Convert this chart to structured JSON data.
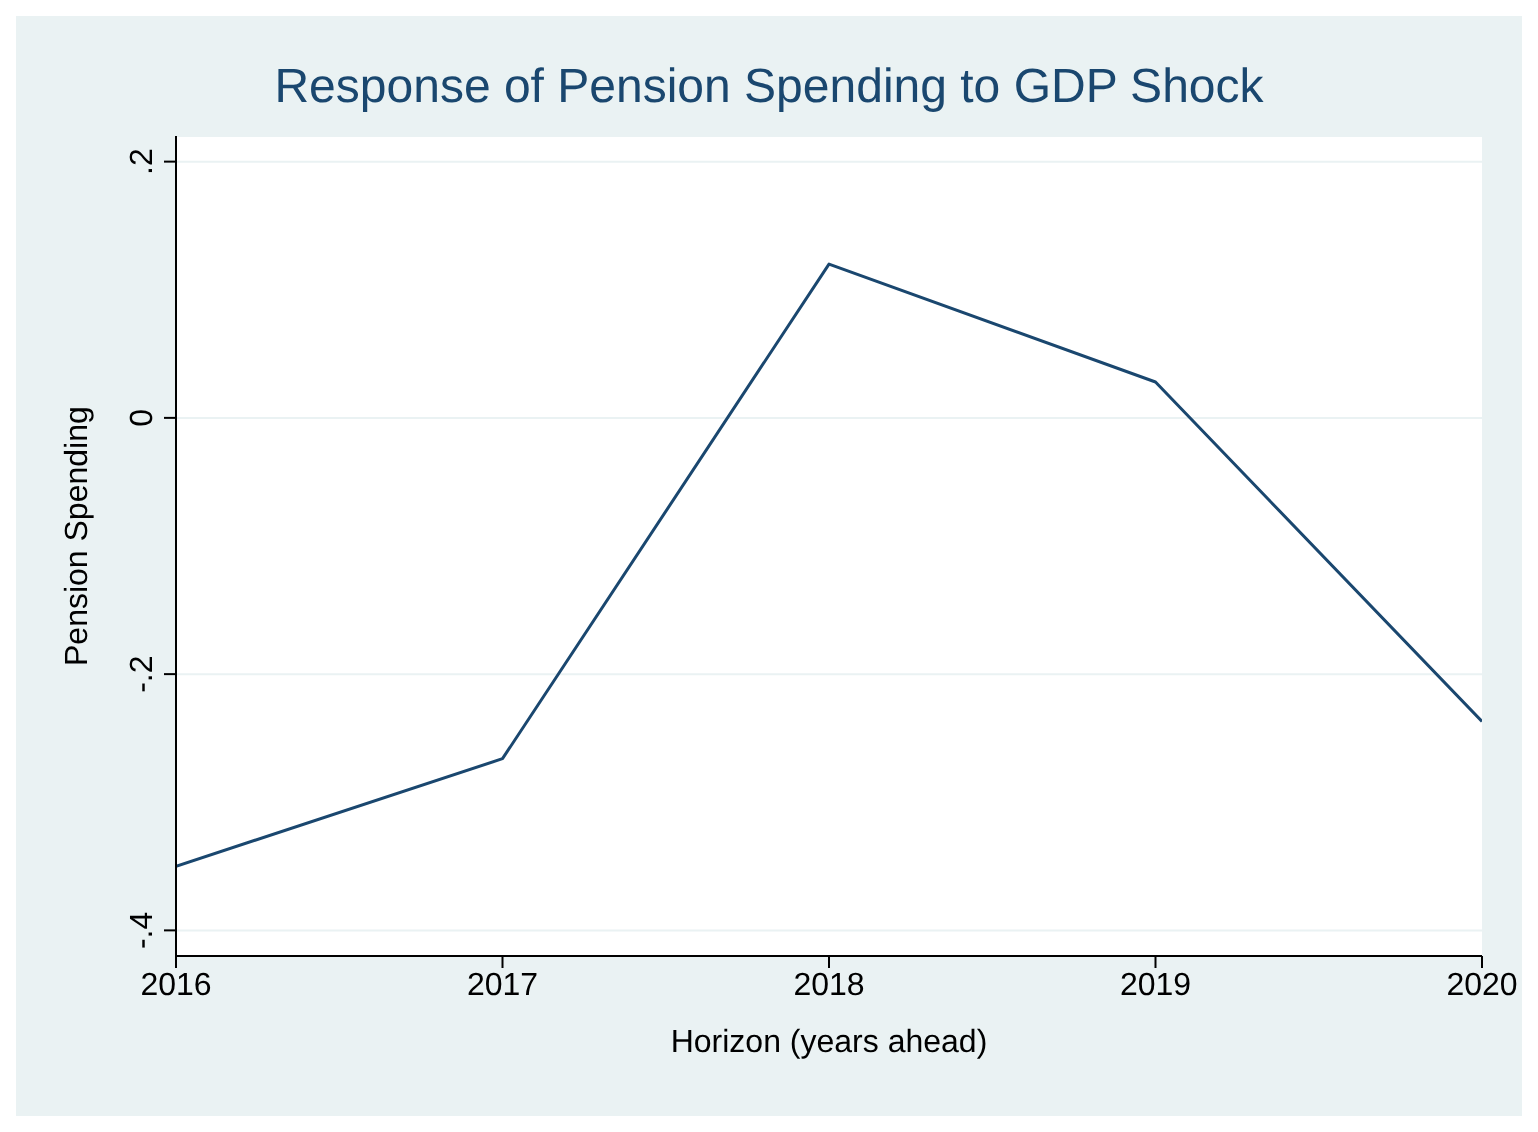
{
  "chart_data": {
    "type": "line",
    "title": "Response of Pension Spending to GDP Shock",
    "xlabel": "Horizon (years ahead)",
    "ylabel": "Pension Spending",
    "x": [
      2016,
      2017,
      2018,
      2019,
      2020
    ],
    "series": [
      {
        "color": "#1a476f",
        "values": [
          -0.35,
          -0.266,
          0.12,
          0.028,
          -0.237
        ]
      }
    ],
    "xlim": [
      2016,
      2020
    ],
    "xticks": [
      2016,
      2017,
      2018,
      2019,
      2020
    ],
    "ylim": [
      -0.42,
      0.22
    ],
    "yticks": [
      {
        "value": -0.4,
        "label": "-.4"
      },
      {
        "value": -0.2,
        "label": "-.2"
      },
      {
        "value": 0,
        "label": "0"
      },
      {
        "value": 0.2,
        "label": ".2"
      }
    ],
    "grid": "y",
    "legend": false,
    "marker": "none",
    "line_style": "solid"
  }
}
